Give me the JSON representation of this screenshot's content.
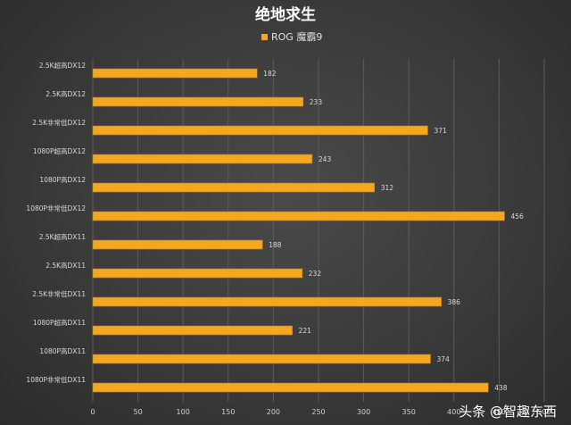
{
  "chart_data": {
    "type": "bar",
    "orientation": "horizontal",
    "title": "绝地求生",
    "legend": "top",
    "grid": true,
    "bar_color": "#f5a623",
    "categories": [
      "2.5K超高DX12",
      "2.5K高DX12",
      "2.5K非常低DX12",
      "1080P超高DX12",
      "1080P高DX12",
      "1080P非常低DX12",
      "2.5K超高DX11",
      "2.5K高DX11",
      "2.5K非常低DX11",
      "1080P超高DX11",
      "1080P高DX11",
      "1080P非常低DX11"
    ],
    "series": [
      {
        "name": "ROG 魔霸9",
        "values": [
          182,
          233,
          371,
          243,
          312,
          456,
          188,
          232,
          386,
          221,
          374,
          438
        ]
      }
    ],
    "xlim": [
      0,
      500
    ],
    "xticks": [
      "0",
      "50",
      "100",
      "150",
      "200",
      "250",
      "300",
      "350",
      "400",
      "450",
      "500"
    ]
  },
  "watermark": "头条 @智趣东西"
}
